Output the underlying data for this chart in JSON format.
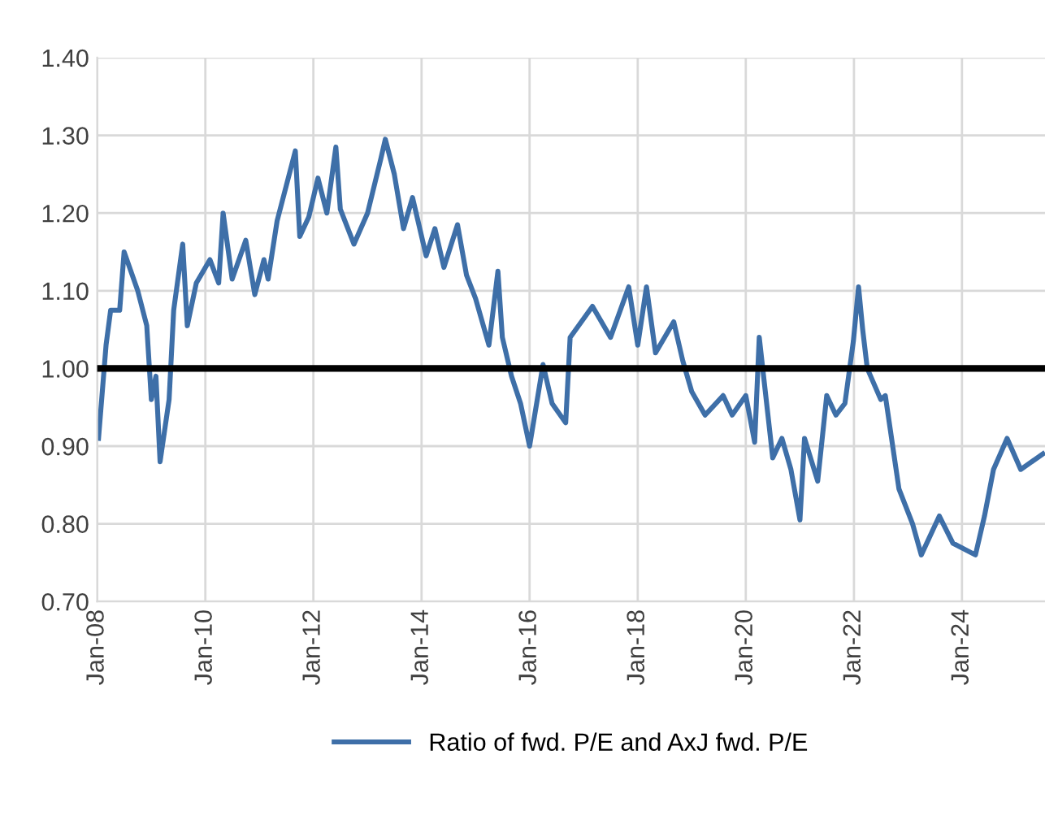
{
  "chart_data": {
    "type": "line",
    "x": [
      "2008-01-10",
      "2008-03",
      "2008-04",
      "2008-06",
      "2008-07",
      "2008-10",
      "2008-12",
      "2009-01",
      "2009-02",
      "2009-03",
      "2009-05",
      "2009-06",
      "2009-08",
      "2009-09",
      "2009-11",
      "2010-02",
      "2010-04",
      "2010-05",
      "2010-07",
      "2010-10",
      "2010-12",
      "2011-02",
      "2011-03",
      "2011-05",
      "2011-09",
      "2011-10",
      "2011-12",
      "2012-02",
      "2012-04",
      "2012-06",
      "2012-07",
      "2012-10",
      "2013-01",
      "2013-04",
      "2013-05",
      "2013-07",
      "2013-09",
      "2013-11",
      "2014-02",
      "2014-04",
      "2014-06",
      "2014-09",
      "2014-11",
      "2015-01",
      "2015-04",
      "2015-06",
      "2015-07",
      "2015-09",
      "2015-11",
      "2016-01",
      "2016-04",
      "2016-06",
      "2016-09",
      "2016-10",
      "2017-03",
      "2017-07",
      "2017-11",
      "2018-01",
      "2018-03",
      "2018-05",
      "2018-09",
      "2018-11",
      "2019-01",
      "2019-04",
      "2019-08",
      "2019-10",
      "2020-01",
      "2020-03",
      "2020-04",
      "2020-07",
      "2020-09",
      "2020-11",
      "2021-01",
      "2021-02",
      "2021-05",
      "2021-07",
      "2021-09",
      "2021-11",
      "2021-12-28",
      "2022-02",
      "2022-03",
      "2022-04",
      "2022-07",
      "2022-08",
      "2022-11",
      "2023-02",
      "2023-04",
      "2023-08",
      "2023-11",
      "2024-04",
      "2024-06",
      "2024-08",
      "2024-11",
      "2025-02",
      "2025-07"
    ],
    "series": [
      {
        "name": "Ratio of fwd. P/E and AxJ fwd. P/E",
        "color": "#3e6fa8",
        "values": [
          0.91,
          1.03,
          1.075,
          1.075,
          1.15,
          1.1,
          1.055,
          0.96,
          0.99,
          0.88,
          0.96,
          1.075,
          1.16,
          1.055,
          1.11,
          1.14,
          1.11,
          1.2,
          1.115,
          1.165,
          1.095,
          1.14,
          1.115,
          1.19,
          1.28,
          1.17,
          1.195,
          1.245,
          1.2,
          1.285,
          1.205,
          1.16,
          1.2,
          1.27,
          1.295,
          1.25,
          1.18,
          1.22,
          1.145,
          1.18,
          1.13,
          1.185,
          1.12,
          1.09,
          1.03,
          1.125,
          1.04,
          0.99,
          0.955,
          0.9,
          1.005,
          0.955,
          0.93,
          1.04,
          1.08,
          1.04,
          1.105,
          1.03,
          1.105,
          1.02,
          1.06,
          1.01,
          0.97,
          0.94,
          0.965,
          0.94,
          0.965,
          0.905,
          1.04,
          0.885,
          0.91,
          0.87,
          0.805,
          0.91,
          0.855,
          0.965,
          0.94,
          0.955,
          1.035,
          1.105,
          1.05,
          1.0,
          0.96,
          0.965,
          0.845,
          0.8,
          0.76,
          0.81,
          0.775,
          0.76,
          0.81,
          0.87,
          0.91,
          0.87,
          0.89
        ]
      }
    ],
    "xlim": [
      "2008-01-01",
      "2025-07-15"
    ],
    "xticks": [
      {
        "value": "2008-01-01",
        "label": "Jan-08"
      },
      {
        "value": "2010-01-01",
        "label": "Jan-10"
      },
      {
        "value": "2012-01-01",
        "label": "Jan-12"
      },
      {
        "value": "2014-01-01",
        "label": "Jan-14"
      },
      {
        "value": "2016-01-01",
        "label": "Jan-16"
      },
      {
        "value": "2018-01-01",
        "label": "Jan-18"
      },
      {
        "value": "2020-01-01",
        "label": "Jan-20"
      },
      {
        "value": "2022-01-01",
        "label": "Jan-22"
      },
      {
        "value": "2024-01-01",
        "label": "Jan-24"
      }
    ],
    "ylim": [
      0.7,
      1.4
    ],
    "yticks": [
      {
        "value": 0.7,
        "label": "0.70"
      },
      {
        "value": 0.8,
        "label": "0.80"
      },
      {
        "value": 0.9,
        "label": "0.90"
      },
      {
        "value": 1.0,
        "label": "1.00"
      },
      {
        "value": 1.1,
        "label": "1.10"
      },
      {
        "value": 1.2,
        "label": "1.20"
      },
      {
        "value": 1.3,
        "label": "1.30"
      },
      {
        "value": 1.4,
        "label": "1.40"
      }
    ],
    "ref_lines": [
      {
        "axis": "y",
        "value": 1.0,
        "color": "#000000",
        "line_style": "solid"
      }
    ],
    "grid": true,
    "legend": "bottom",
    "marker": "none",
    "line_style": "solid"
  }
}
